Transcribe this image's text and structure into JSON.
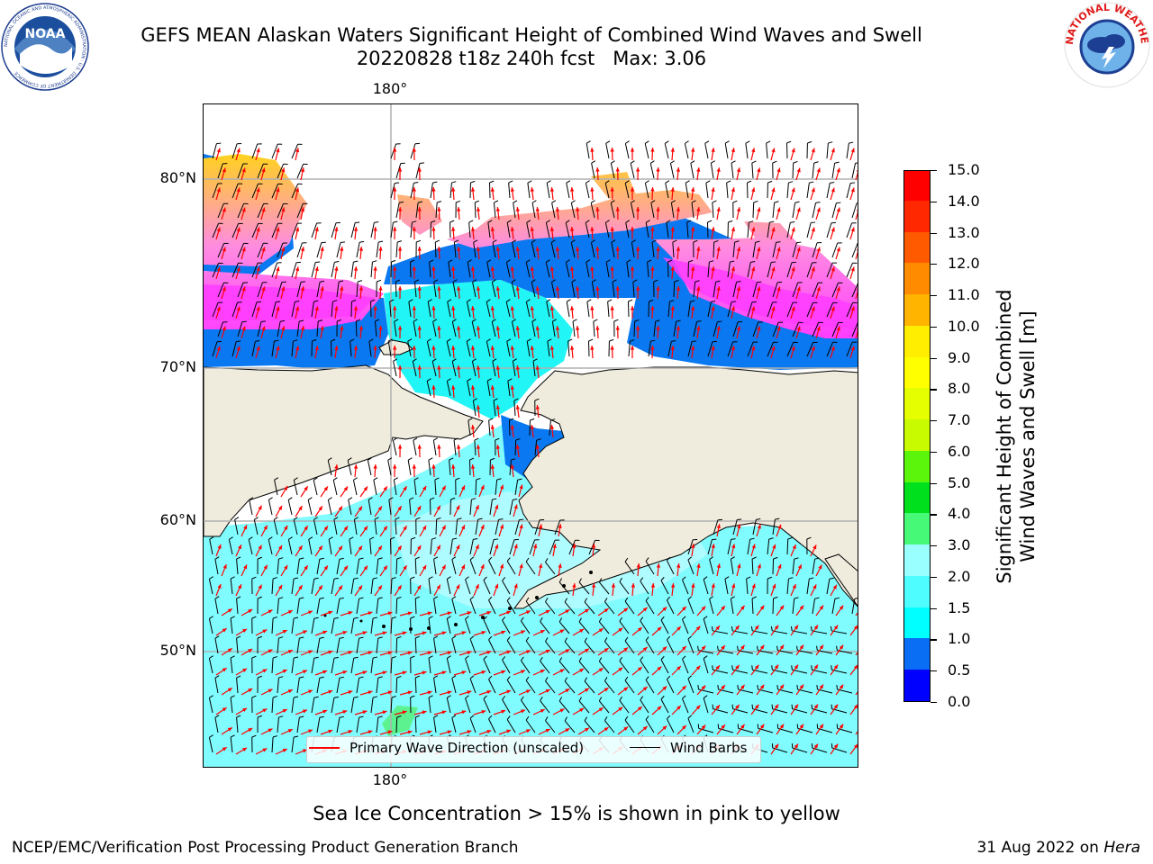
{
  "header": {
    "title_line1": "GEFS MEAN Alaskan Waters Significant Height of Combined Wind Waves and Swell",
    "title_line2": "20220828 t18z 240h fcst   Max: 3.06"
  },
  "logos": {
    "left": {
      "text": "NOAA",
      "ring_text": "NATIONAL OCEANIC AND ATMOSPHERIC ADMINISTRATION · U.S. DEPARTMENT OF COMMERCE",
      "icon": "noaa-logo"
    },
    "right": {
      "ring_text": "NATIONAL WEATHER SERVICE",
      "icon": "nws-logo"
    }
  },
  "map": {
    "lon_label_top": "180°",
    "lon_label_bottom": "180°",
    "lat_labels": [
      "80°N",
      "70°N",
      "60°N",
      "50°N"
    ],
    "colors": {
      "land": "#efecdd",
      "open_water": "#ffffff",
      "coast": "#000000",
      "grid": "#b0b0b0",
      "wave_arrow": "#ff0000",
      "wind_barb": "#000000"
    }
  },
  "colorbar": {
    "title": "Significant Height of Combined\nWind Waves and Swell [m]",
    "tick_labels": [
      "0.0",
      "0.5",
      "1.0",
      "1.5",
      "2.0",
      "3.0",
      "4.0",
      "5.0",
      "6.0",
      "7.0",
      "8.0",
      "9.0",
      "10.0",
      "11.0",
      "12.0",
      "13.0",
      "14.0",
      "15.0"
    ],
    "colors": [
      "#0000ff",
      "#0a6ef5",
      "#00ffff",
      "#4dfdff",
      "#99ffff",
      "#46fa78",
      "#00e01c",
      "#5af50a",
      "#c8fa00",
      "#e6ff00",
      "#ffff00",
      "#ffee00",
      "#ffb400",
      "#ff8c00",
      "#ff5a00",
      "#ff2800",
      "#ff0000"
    ]
  },
  "legend": {
    "wave_label": "Primary Wave Direction (unscaled)",
    "wind_label": "Wind Barbs"
  },
  "note": "Sea Ice Concentration > 15% is shown in pink to yellow",
  "footer": {
    "left": "NCEP/EMC/Verification Post Processing Product Generation Branch",
    "right_prefix": "31 Aug 2022 on ",
    "right_host": "Hera"
  }
}
